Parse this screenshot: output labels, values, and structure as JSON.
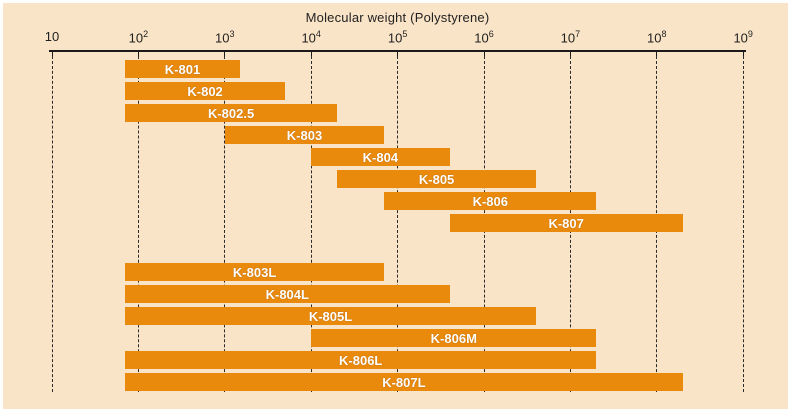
{
  "chart_data": {
    "type": "bar",
    "variant": "horizontal-log-range-bars",
    "title": "Molecular weight (Polystyrene)",
    "x_axis": {
      "scale": "log10",
      "xlim": [
        10,
        1000000000
      ],
      "min_exponent": 1,
      "max_exponent": 9,
      "ticks": [
        {
          "mantissa": "10",
          "exponent": ""
        },
        {
          "mantissa": "10",
          "exponent": "2"
        },
        {
          "mantissa": "10",
          "exponent": "3"
        },
        {
          "mantissa": "10",
          "exponent": "4"
        },
        {
          "mantissa": "10",
          "exponent": "5"
        },
        {
          "mantissa": "10",
          "exponent": "6"
        },
        {
          "mantissa": "10",
          "exponent": "7"
        },
        {
          "mantissa": "10",
          "exponent": "8"
        },
        {
          "mantissa": "10",
          "exponent": "9"
        }
      ],
      "grid": "vertical-dashed-at-each-decade"
    },
    "legend": "none",
    "series": [
      {
        "group": "standard-columns",
        "bars": [
          {
            "label": "K-801",
            "range": [
              70,
              1500
            ]
          },
          {
            "label": "K-802",
            "range": [
              70,
              5000
            ]
          },
          {
            "label": "K-802.5",
            "range": [
              70,
              20000
            ]
          },
          {
            "label": "K-803",
            "range": [
              1000,
              70000
            ]
          },
          {
            "label": "K-804",
            "range": [
              10000,
              400000
            ]
          },
          {
            "label": "K-805",
            "range": [
              20000,
              4000000
            ]
          },
          {
            "label": "K-806",
            "range": [
              70000,
              20000000
            ]
          },
          {
            "label": "K-807",
            "range": [
              400000,
              200000000
            ]
          }
        ]
      },
      {
        "group": "linear-columns",
        "bars": [
          {
            "label": "K-803L",
            "range": [
              70,
              70000
            ]
          },
          {
            "label": "K-804L",
            "range": [
              70,
              400000
            ]
          },
          {
            "label": "K-805L",
            "range": [
              70,
              4000000
            ]
          },
          {
            "label": "K-806M",
            "range": [
              10000,
              20000000
            ]
          },
          {
            "label": "K-806L",
            "range": [
              70,
              20000000
            ]
          },
          {
            "label": "K-807L",
            "range": [
              70,
              200000000
            ]
          }
        ]
      }
    ],
    "colors": {
      "bar": "#E98A0D",
      "bar_label": "#FFFFFF",
      "background": "#FAE4C7",
      "frame": "#FFFFFF",
      "axis": "#1A1A1A"
    }
  }
}
